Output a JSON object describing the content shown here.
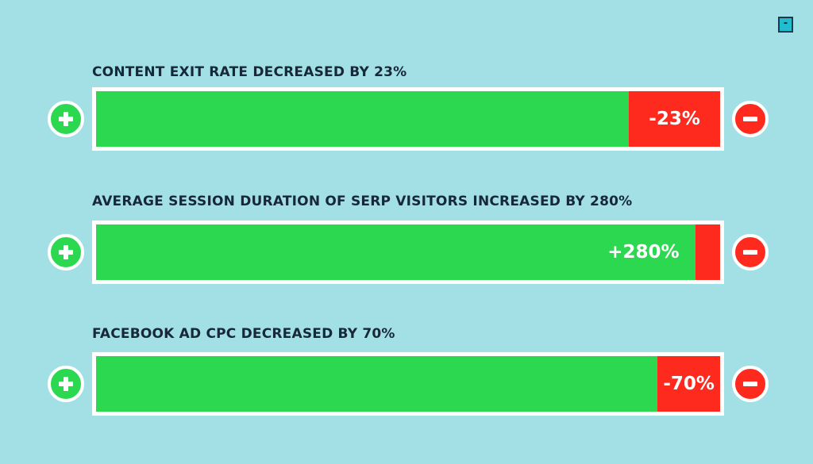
{
  "collapse_button": {
    "label": "-"
  },
  "colors": {
    "background": "#a3e0e5",
    "positive": "#2cd850",
    "negative": "#ff2a1e",
    "title": "#16283a"
  },
  "metrics": [
    {
      "title": "CONTENT EXIT RATE DECREASED BY 23%",
      "value_label": "-23%",
      "label_segment": "red",
      "green_fraction": 0.854
    },
    {
      "title": "AVERAGE SESSION DURATION OF SERP VISITORS INCREASED BY 280%",
      "value_label": "+280%",
      "label_segment": "green",
      "green_fraction": 0.96
    },
    {
      "title": "FACEBOOK AD CPC DECREASED BY 70%",
      "value_label": "-70%",
      "label_segment": "red",
      "green_fraction": 0.9
    }
  ],
  "icons": {
    "left": "plus-circle-icon",
    "right": "minus-circle-icon"
  }
}
